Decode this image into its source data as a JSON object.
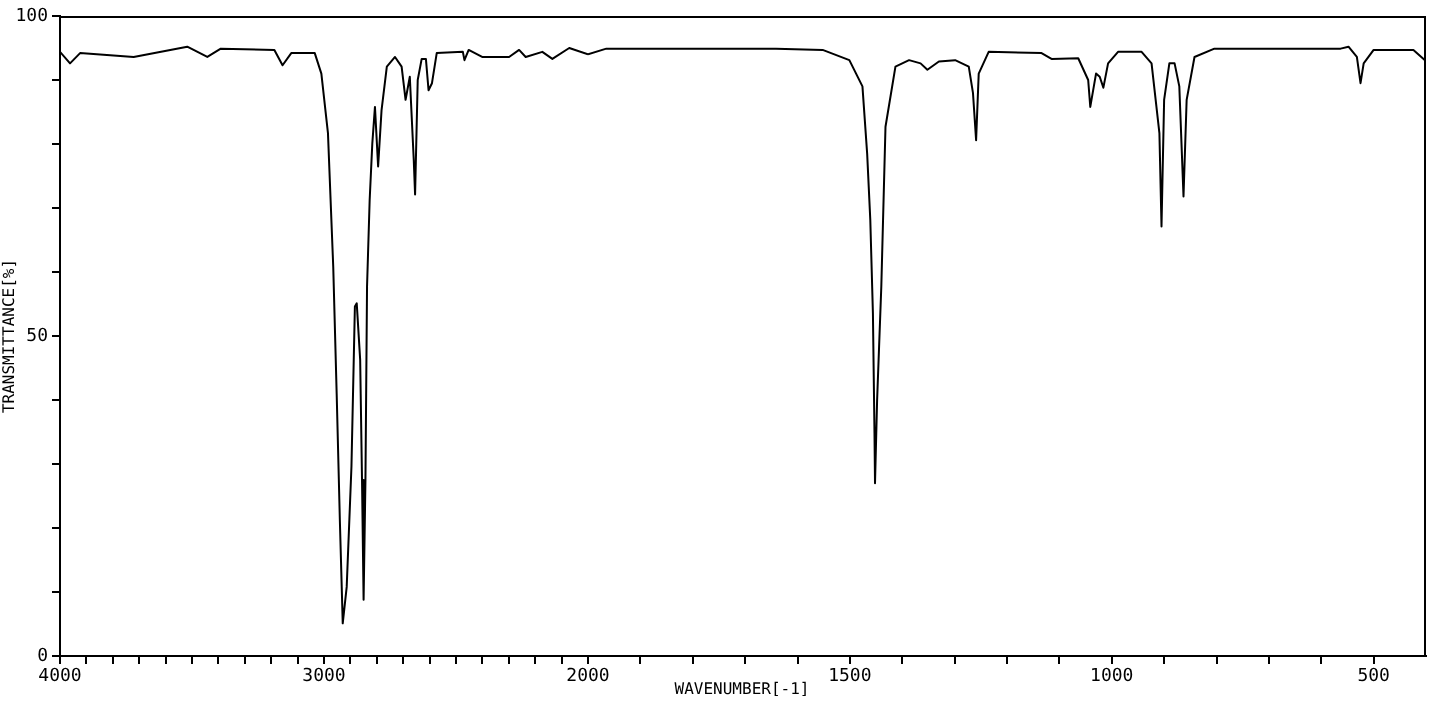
{
  "chart_data": [
    {
      "type": "line",
      "ylabel": "TRANSMITTANCE[%]",
      "xlim": [
        4000,
        2000
      ],
      "ylim": [
        0,
        100
      ],
      "xticks": [
        4000,
        {
          "value": 3900,
          "label": null
        },
        {
          "value": 3800,
          "label": null
        },
        {
          "value": 3700,
          "label": null
        },
        {
          "value": 3600,
          "label": null
        },
        {
          "value": 3500,
          "label": null
        },
        {
          "value": 3400,
          "label": null
        },
        {
          "value": 3300,
          "label": null
        },
        {
          "value": 3200,
          "label": null
        },
        {
          "value": 3100,
          "label": null
        },
        3000,
        {
          "value": 2900,
          "label": null
        },
        {
          "value": 2800,
          "label": null
        },
        {
          "value": 2700,
          "label": null
        },
        {
          "value": 2600,
          "label": null
        },
        {
          "value": 2500,
          "label": null
        },
        {
          "value": 2400,
          "label": null
        },
        {
          "value": 2300,
          "label": null
        },
        {
          "value": 2200,
          "label": null
        },
        {
          "value": 2100,
          "label": null
        },
        2000
      ],
      "yticks": [
        0,
        {
          "value": 10,
          "label": null
        },
        {
          "value": 20,
          "label": null
        },
        {
          "value": 30,
          "label": null
        },
        {
          "value": 40,
          "label": null
        },
        50,
        {
          "value": 60,
          "label": null
        },
        {
          "value": 70,
          "label": null
        },
        {
          "value": 80,
          "label": null
        },
        {
          "value": 90,
          "label": null
        },
        100
      ],
      "grid": false,
      "legend": false,
      "marker": "none",
      "line_style": "solid",
      "series": [
        {
          "color": "#000000",
          "x": [
            4000,
            3962,
            3924,
            3721,
            3518,
            3442,
            3391,
            3188,
            3157,
            3124,
            3035,
            3010,
            2985,
            2965,
            2952,
            2940,
            2929,
            2914,
            2896,
            2883,
            2876,
            2863,
            2856,
            2850,
            2843,
            2837,
            2827,
            2817,
            2807,
            2795,
            2782,
            2762,
            2731,
            2706,
            2691,
            2675,
            2660,
            2655,
            2645,
            2630,
            2614,
            2604,
            2591,
            2573,
            2474,
            2468,
            2452,
            2401,
            2299,
            2261,
            2236,
            2173,
            2135,
            2071,
            2000
          ],
          "values": [
            94.4,
            92.6,
            94.2,
            93.6,
            95.2,
            93.6,
            94.9,
            94.7,
            92.3,
            94.2,
            94.2,
            91.0,
            81.7,
            60.8,
            41.0,
            21.3,
            5.1,
            10.8,
            29.6,
            54.6,
            55.1,
            46.3,
            27.5,
            8.8,
            27.5,
            57.7,
            71.3,
            80.1,
            85.8,
            76.5,
            85.3,
            92.1,
            93.6,
            92.1,
            86.9,
            90.5,
            77.5,
            72.1,
            90.0,
            93.3,
            93.3,
            88.4,
            89.5,
            94.2,
            94.4,
            93.1,
            94.7,
            93.6,
            93.6,
            94.7,
            93.6,
            94.4,
            93.3,
            95.0,
            94.0
          ]
        }
      ]
    },
    {
      "type": "line",
      "xlabel": "WAVENUMBER[-1]",
      "xlim": [
        2000,
        400
      ],
      "ylim": [
        0,
        100
      ],
      "tick_labels": "x",
      "xticks": [
        {
          "value": 2000,
          "label": null
        },
        {
          "value": 1900,
          "label": null
        },
        {
          "value": 1800,
          "label": null
        },
        {
          "value": 1700,
          "label": null
        },
        {
          "value": 1600,
          "label": null
        },
        1500,
        {
          "value": 1400,
          "label": null
        },
        {
          "value": 1300,
          "label": null
        },
        {
          "value": 1200,
          "label": null
        },
        {
          "value": 1100,
          "label": null
        },
        1000,
        {
          "value": 900,
          "label": null
        },
        {
          "value": 800,
          "label": null
        },
        {
          "value": 700,
          "label": null
        },
        {
          "value": 600,
          "label": null
        },
        500
      ],
      "grid": false,
      "legend": false,
      "marker": "none",
      "line_style": "solid",
      "series": [
        {
          "color": "#000000",
          "x": [
            2000,
            1965,
            1768,
            1641,
            1552,
            1501,
            1476,
            1467,
            1461,
            1456,
            1453,
            1452,
            1448,
            1440,
            1432,
            1413,
            1387,
            1365,
            1352,
            1330,
            1299,
            1273,
            1265,
            1259,
            1254,
            1235,
            1134,
            1115,
            1064,
            1045,
            1041,
            1030,
            1023,
            1016,
            1007,
            988,
            943,
            924,
            909,
            905,
            900,
            890,
            880,
            871,
            863,
            857,
            842,
            804,
            563,
            548,
            532,
            525,
            519,
            500,
            424,
            402,
            400
          ],
          "values": [
            94.0,
            94.9,
            94.9,
            94.9,
            94.7,
            93.1,
            89.0,
            78.5,
            68.1,
            53.5,
            34.8,
            27.0,
            40.0,
            57.7,
            82.7,
            92.1,
            93.1,
            92.6,
            91.6,
            92.9,
            93.1,
            92.1,
            88.0,
            80.6,
            91.0,
            94.4,
            94.2,
            93.3,
            93.4,
            90.0,
            85.8,
            91.0,
            90.5,
            88.8,
            92.6,
            94.4,
            94.4,
            92.6,
            81.7,
            67.1,
            86.9,
            92.6,
            92.6,
            89.0,
            71.8,
            86.9,
            93.6,
            94.9,
            94.9,
            95.2,
            93.6,
            89.5,
            92.6,
            94.7,
            94.7,
            93.1,
            93.1
          ]
        }
      ]
    }
  ]
}
